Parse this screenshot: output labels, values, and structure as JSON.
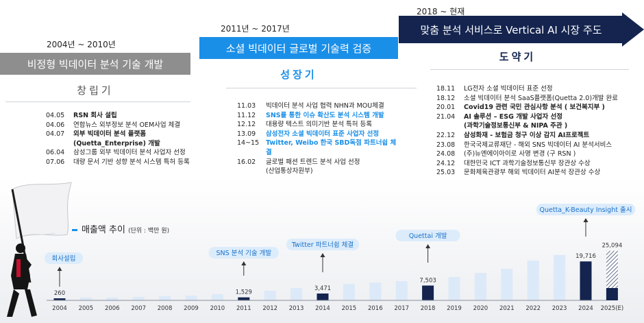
{
  "phases": [
    {
      "period": "2004년 ~ 2010년",
      "band": "비정형 빅데이터 분석 기술 개발",
      "title": "창립기",
      "events": [
        {
          "date": "04.05",
          "text": "RSN 회사 설립",
          "style": "bold"
        },
        {
          "date": "04.06",
          "text": "연합뉴스 외부정보 분석 OEM사업 체결",
          "style": ""
        },
        {
          "date": "04.07",
          "text": "외부 빅데이터 분석 플랫폼",
          "style": "bold"
        },
        {
          "date": "",
          "text": "(Quetta_Enterprise) 개발",
          "style": "bold"
        },
        {
          "date": "06.04",
          "text": "삼성그룹 외부 빅데이터 분석 사업자 선정",
          "style": ""
        },
        {
          "date": "07.06",
          "text": "대량 문서 기반 성향 분석 시스템 특허 등록",
          "style": ""
        }
      ]
    },
    {
      "period": "2011년 ~ 2017년",
      "band": "소셜 빅데이터 글로벌 기술력 검증",
      "title": "성장기",
      "events": [
        {
          "date": "11.03",
          "text": "빅데이터 분석 사업 협력 NHN과 MOU체결",
          "style": ""
        },
        {
          "date": "11.12",
          "text": "SNS를 통한 이슈 확산도 분석 시스템 개발",
          "style": "blue"
        },
        {
          "date": "12.12",
          "text": "대용량 텍스트 의미기반 분석 특허 등록",
          "style": ""
        },
        {
          "date": "13.09",
          "text": "삼성전자 소셜 빅데이터 표준 사업자 선정",
          "style": "blue"
        },
        {
          "date": "14~15",
          "text": "Twitter, Weibo 한국 SBD독점 파트너쉽 체결",
          "style": "blue"
        },
        {
          "date": "16.02",
          "text": "글로벌 패션 트렌드 분석 사업 선정",
          "style": ""
        },
        {
          "date": "",
          "text": "(산업통상자원부)",
          "style": ""
        }
      ]
    },
    {
      "period": "2018 ~ 현재",
      "band": "맞춤 분석 서비스로 Vertical AI 시장 주도",
      "title": "도약기",
      "events": [
        {
          "date": "18.11",
          "text": "LG전자 소셜 빅데이터 표준 선정",
          "style": ""
        },
        {
          "date": "18.12",
          "text": "소셜 빅데이터 분석 SaaS플랫폼(Quetta 2.0)개발 완료",
          "style": ""
        },
        {
          "date": "20.01",
          "text": "Covid19 관련 국민 관심사항 분석 ( 보건복지부 )",
          "style": "bold"
        },
        {
          "date": "21.04",
          "text": "AI 솔루션 – ESG 개발 사업자 선정",
          "style": "bold"
        },
        {
          "date": "",
          "text": "(과학기술정보통신부 & NIPA 주관 )",
          "style": "bold"
        },
        {
          "date": "22.12",
          "text": "삼성화재 - 보험금 청구 이상 감지 AI프로젝트",
          "style": "bold"
        },
        {
          "date": "23.08",
          "text": "한국국제교류재단 - 해외 SNS 빅데이터 AI 분석서비스",
          "style": ""
        },
        {
          "date": "24.08",
          "text": "(주)뉴엔에이아이로 사명 변경 (구 RSN )",
          "style": ""
        },
        {
          "date": "24.12",
          "text": "대한민국 ICT 과학기술정보통신부 장관상 수상",
          "style": ""
        },
        {
          "date": "25.03",
          "text": "문화체육관광부 해외 빅데이터 AI분석 장관상 수상",
          "style": ""
        }
      ]
    }
  ],
  "chart": {
    "title": "매출액 추이",
    "unit": "(단위 : 백만 원)"
  },
  "chart_data": {
    "type": "bar",
    "categories": [
      "2004",
      "2005",
      "2006",
      "2007",
      "2008",
      "2009",
      "2010",
      "2011",
      "2012",
      "2013",
      "2014",
      "2015",
      "2016",
      "2017",
      "2018",
      "2019",
      "2020",
      "2021",
      "2022",
      "2023",
      "2024",
      "2025(E)"
    ],
    "values": [
      260,
      null,
      null,
      null,
      null,
      null,
      null,
      1529,
      null,
      null,
      3471,
      null,
      null,
      null,
      7503,
      null,
      null,
      null,
      null,
      null,
      19716,
      25094
    ],
    "labeled_values": [
      "260",
      "",
      "",
      "",
      "",
      "",
      "",
      "1,529",
      "",
      "",
      "3,471",
      "",
      "",
      "",
      "7,503",
      "",
      "",
      "",
      "",
      "",
      "19,716",
      "25,094"
    ],
    "highlight": [
      "2004",
      "2011",
      "2014",
      "2018",
      "2024"
    ],
    "estimated": [
      "2025(E)"
    ],
    "milestones": [
      {
        "year": "2004",
        "label": "회사설립"
      },
      {
        "year": "2011",
        "label": "SNS 분석 기술 개발"
      },
      {
        "year": "2014",
        "label": "Twitter 파트너쉽 체결"
      },
      {
        "year": "2018",
        "label": "Quettai 개발"
      },
      {
        "year": "2024",
        "label": "Quetta_K-Beauty Insight 출시"
      }
    ],
    "colors": {
      "highlight": "#14244f",
      "other": "#dce9f8",
      "milestone_bg": "#dcecfb",
      "milestone_text": "#1a70c8"
    }
  }
}
